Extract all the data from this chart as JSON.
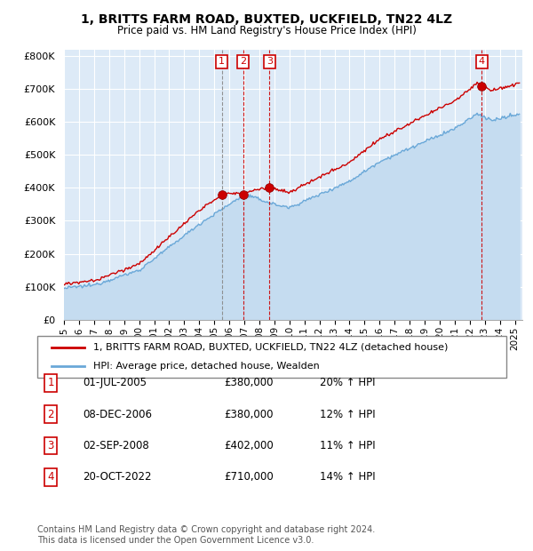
{
  "title": "1, BRITTS FARM ROAD, BUXTED, UCKFIELD, TN22 4LZ",
  "subtitle": "Price paid vs. HM Land Registry's House Price Index (HPI)",
  "ylim": [
    0,
    820000
  ],
  "yticks": [
    0,
    100000,
    200000,
    300000,
    400000,
    500000,
    600000,
    700000,
    800000
  ],
  "ytick_labels": [
    "£0",
    "£100K",
    "£200K",
    "£300K",
    "£400K",
    "£500K",
    "£600K",
    "£700K",
    "£800K"
  ],
  "plot_bg": "#ddeaf7",
  "grid_color": "#ffffff",
  "sale_color": "#cc0000",
  "hpi_color": "#6aa8d8",
  "hpi_fill_color": "#c5dcf0",
  "sale_label": "1, BRITTS FARM ROAD, BUXTED, UCKFIELD, TN22 4LZ (detached house)",
  "hpi_label": "HPI: Average price, detached house, Wealden",
  "transactions": [
    {
      "num": 1,
      "date_label": "01-JUL-2005",
      "price": 380000,
      "pct": "20%",
      "x_year": 2005.5,
      "vline_style": "--",
      "vline_color": "#888888"
    },
    {
      "num": 2,
      "date_label": "08-DEC-2006",
      "price": 380000,
      "pct": "12%",
      "x_year": 2006.92,
      "vline_style": "--",
      "vline_color": "#cc0000"
    },
    {
      "num": 3,
      "date_label": "02-SEP-2008",
      "price": 402000,
      "pct": "11%",
      "x_year": 2008.67,
      "vline_style": "--",
      "vline_color": "#cc0000"
    },
    {
      "num": 4,
      "date_label": "20-OCT-2022",
      "price": 710000,
      "pct": "14%",
      "x_year": 2022.8,
      "vline_style": "--",
      "vline_color": "#cc0000"
    }
  ],
  "footer": "Contains HM Land Registry data © Crown copyright and database right 2024.\nThis data is licensed under the Open Government Licence v3.0.",
  "xlim_start": 1995,
  "xlim_end": 2025.5
}
